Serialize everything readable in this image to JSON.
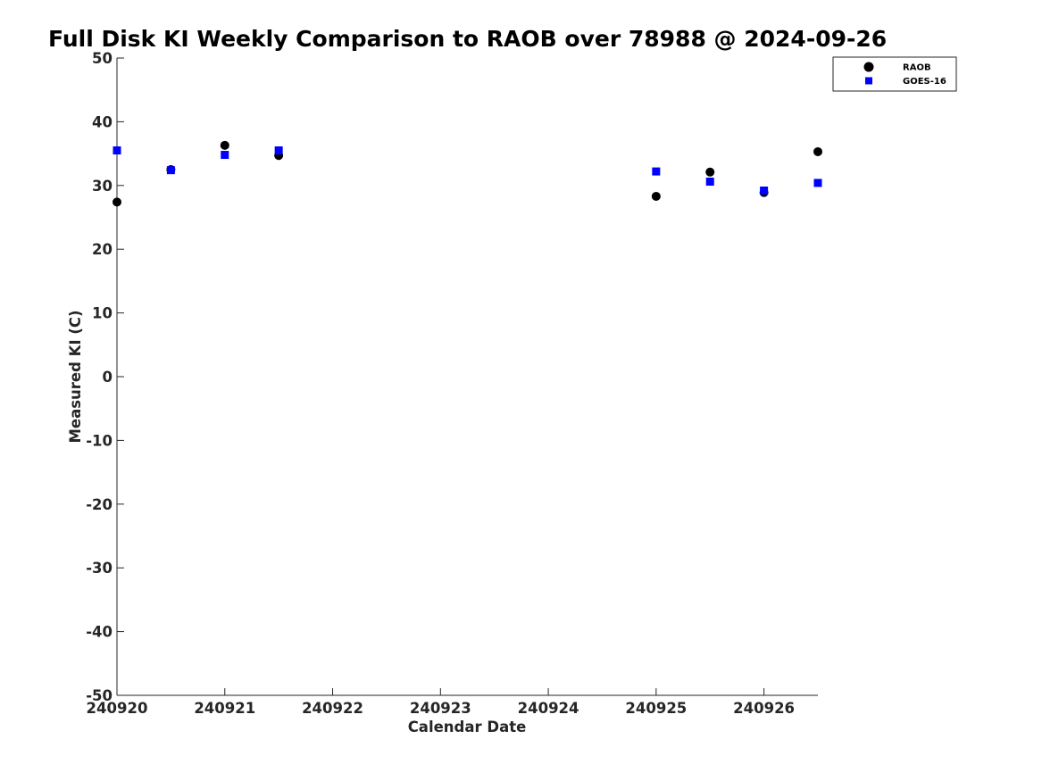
{
  "chart_data": {
    "type": "scatter",
    "title": "Full Disk KI Weekly Comparison to RAOB over 78988 @ 2024-09-26",
    "xlabel": "Calendar Date",
    "ylabel": "Measured KI (C)",
    "xlim": [
      240920,
      240926.5
    ],
    "ylim": [
      -50,
      50
    ],
    "xticks": [
      240920,
      240921,
      240922,
      240923,
      240924,
      240925,
      240926
    ],
    "xtick_labels": [
      "240920",
      "240921",
      "240922",
      "240923",
      "240924",
      "240925",
      "240926"
    ],
    "yticks": [
      50,
      40,
      30,
      20,
      10,
      0,
      -10,
      -20,
      -30,
      -40,
      -50
    ],
    "ytick_labels": [
      "50",
      "40",
      "30",
      "20",
      "10",
      "0",
      "-10",
      "-20",
      "-30",
      "-40",
      "-50"
    ],
    "grid": false,
    "legend_position": "top-right",
    "series": [
      {
        "name": "RAOB",
        "marker": "circle",
        "color": "#000000",
        "x": [
          240920,
          240920.5,
          240921,
          240921.5,
          240925,
          240925.5,
          240926,
          240926.5
        ],
        "y": [
          27.4,
          32.5,
          36.3,
          34.7,
          28.3,
          32.1,
          28.9,
          35.3
        ]
      },
      {
        "name": "GOES-16",
        "marker": "square",
        "color": "#0000ff",
        "x": [
          240920,
          240920.5,
          240921,
          240921.5,
          240925,
          240925.5,
          240926,
          240926.5
        ],
        "y": [
          35.5,
          32.4,
          34.8,
          35.5,
          32.2,
          30.6,
          29.2,
          30.4
        ]
      }
    ]
  }
}
